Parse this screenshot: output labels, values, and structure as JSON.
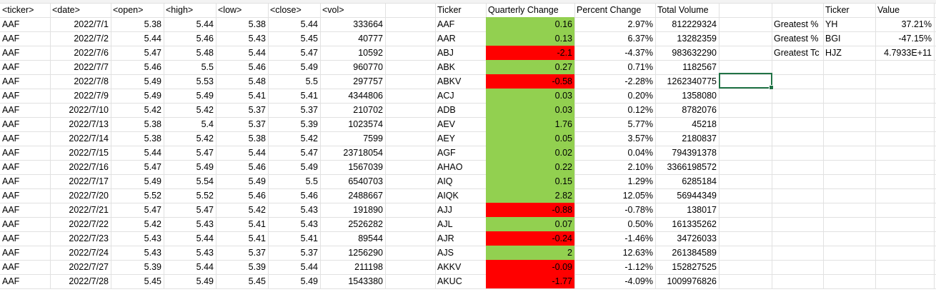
{
  "headers": {
    "ticker": "<ticker>",
    "date": "<date>",
    "open": "<open>",
    "high": "<high>",
    "low": "<low>",
    "close": "<close>",
    "vol": "<vol>",
    "summary_ticker": "Ticker",
    "quarterly_change": "Quarterly Change",
    "percent_change": "Percent Change",
    "total_volume": "Total Volume",
    "greatest_ticker": "Ticker",
    "greatest_value": "Value"
  },
  "raw_rows": [
    [
      "AAF",
      "2022/7/1",
      "5.38",
      "5.44",
      "5.38",
      "5.44",
      "333664"
    ],
    [
      "AAF",
      "2022/7/2",
      "5.44",
      "5.46",
      "5.43",
      "5.45",
      "40777"
    ],
    [
      "AAF",
      "2022/7/6",
      "5.47",
      "5.48",
      "5.44",
      "5.47",
      "10592"
    ],
    [
      "AAF",
      "2022/7/7",
      "5.46",
      "5.5",
      "5.46",
      "5.49",
      "960770"
    ],
    [
      "AAF",
      "2022/7/8",
      "5.49",
      "5.53",
      "5.48",
      "5.5",
      "297757"
    ],
    [
      "AAF",
      "2022/7/9",
      "5.49",
      "5.49",
      "5.41",
      "5.41",
      "4344806"
    ],
    [
      "AAF",
      "2022/7/10",
      "5.42",
      "5.42",
      "5.37",
      "5.37",
      "210702"
    ],
    [
      "AAF",
      "2022/7/13",
      "5.38",
      "5.4",
      "5.37",
      "5.39",
      "1023574"
    ],
    [
      "AAF",
      "2022/7/14",
      "5.38",
      "5.42",
      "5.38",
      "5.42",
      "7599"
    ],
    [
      "AAF",
      "2022/7/15",
      "5.44",
      "5.47",
      "5.44",
      "5.47",
      "23718054"
    ],
    [
      "AAF",
      "2022/7/16",
      "5.47",
      "5.49",
      "5.46",
      "5.49",
      "1567039"
    ],
    [
      "AAF",
      "2022/7/17",
      "5.49",
      "5.54",
      "5.49",
      "5.5",
      "6540703"
    ],
    [
      "AAF",
      "2022/7/20",
      "5.52",
      "5.52",
      "5.46",
      "5.46",
      "2488667"
    ],
    [
      "AAF",
      "2022/7/21",
      "5.47",
      "5.47",
      "5.42",
      "5.43",
      "191890"
    ],
    [
      "AAF",
      "2022/7/22",
      "5.42",
      "5.43",
      "5.41",
      "5.43",
      "2526282"
    ],
    [
      "AAF",
      "2022/7/23",
      "5.43",
      "5.44",
      "5.41",
      "5.41",
      "89544"
    ],
    [
      "AAF",
      "2022/7/24",
      "5.43",
      "5.43",
      "5.37",
      "5.37",
      "1256290"
    ],
    [
      "AAF",
      "2022/7/27",
      "5.39",
      "5.44",
      "5.39",
      "5.44",
      "211198"
    ],
    [
      "AAF",
      "2022/7/28",
      "5.45",
      "5.49",
      "5.45",
      "5.49",
      "1543380"
    ]
  ],
  "summary_rows": [
    {
      "ticker": "AAF",
      "change": "0.16",
      "percent": "2.97%",
      "volume": "812229324",
      "sign": "pos"
    },
    {
      "ticker": "AAR",
      "change": "0.13",
      "percent": "6.37%",
      "volume": "13282359",
      "sign": "pos"
    },
    {
      "ticker": "ABJ",
      "change": "-2.1",
      "percent": "-4.37%",
      "volume": "983632290",
      "sign": "neg"
    },
    {
      "ticker": "ABK",
      "change": "0.27",
      "percent": "0.71%",
      "volume": "1182567",
      "sign": "pos"
    },
    {
      "ticker": "ABKV",
      "change": "-0.58",
      "percent": "-2.28%",
      "volume": "1262340775",
      "sign": "neg"
    },
    {
      "ticker": "ACJ",
      "change": "0.03",
      "percent": "0.20%",
      "volume": "1358080",
      "sign": "pos"
    },
    {
      "ticker": "ADB",
      "change": "0.03",
      "percent": "0.12%",
      "volume": "8782076",
      "sign": "pos"
    },
    {
      "ticker": "AEV",
      "change": "1.76",
      "percent": "5.77%",
      "volume": "45218",
      "sign": "pos"
    },
    {
      "ticker": "AEY",
      "change": "0.05",
      "percent": "3.57%",
      "volume": "2180837",
      "sign": "pos"
    },
    {
      "ticker": "AGF",
      "change": "0.02",
      "percent": "0.04%",
      "volume": "794391378",
      "sign": "pos"
    },
    {
      "ticker": "AHAO",
      "change": "0.22",
      "percent": "2.10%",
      "volume": "3366198572",
      "sign": "pos"
    },
    {
      "ticker": "AIQ",
      "change": "0.15",
      "percent": "1.29%",
      "volume": "6285184",
      "sign": "pos"
    },
    {
      "ticker": "AIQK",
      "change": "2.82",
      "percent": "12.05%",
      "volume": "56944349",
      "sign": "pos"
    },
    {
      "ticker": "AJJ",
      "change": "-0.88",
      "percent": "-0.78%",
      "volume": "138017",
      "sign": "neg"
    },
    {
      "ticker": "AJL",
      "change": "0.07",
      "percent": "0.50%",
      "volume": "161335262",
      "sign": "pos"
    },
    {
      "ticker": "AJR",
      "change": "-0.24",
      "percent": "-1.46%",
      "volume": "34726033",
      "sign": "neg"
    },
    {
      "ticker": "AJS",
      "change": "2",
      "percent": "12.63%",
      "volume": "261384589",
      "sign": "pos"
    },
    {
      "ticker": "AKKV",
      "change": "-0.09",
      "percent": "-1.12%",
      "volume": "152827525",
      "sign": "neg"
    },
    {
      "ticker": "AKUC",
      "change": "-1.77",
      "percent": "-4.09%",
      "volume": "1009976826",
      "sign": "neg"
    }
  ],
  "greatest": [
    {
      "label": "Greatest %",
      "ticker": "YH",
      "value": "37.21%"
    },
    {
      "label": "Greatest %",
      "ticker": "BGI",
      "value": "-47.15%"
    },
    {
      "label": "Greatest Tc",
      "ticker": "HJZ",
      "value": "4.7933E+11"
    }
  ],
  "colors": {
    "positive_fill": "#92d050",
    "negative_fill": "#ff0000",
    "selection": "#217346",
    "gridline": "#e1e1e1"
  }
}
